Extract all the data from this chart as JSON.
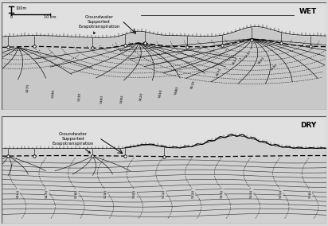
{
  "fig_width": 4.12,
  "fig_height": 2.84,
  "dpi": 100,
  "panel_bg": "#c8c8c8",
  "sky_bg": "#e0e0e0",
  "wet_label": "WET",
  "dry_label": "DRY",
  "wet_annotation": "Groundwater\nSupported\nEvapotranspiration",
  "dry_annotation": "Groundwater\nSupported\nEvapotranspiration"
}
